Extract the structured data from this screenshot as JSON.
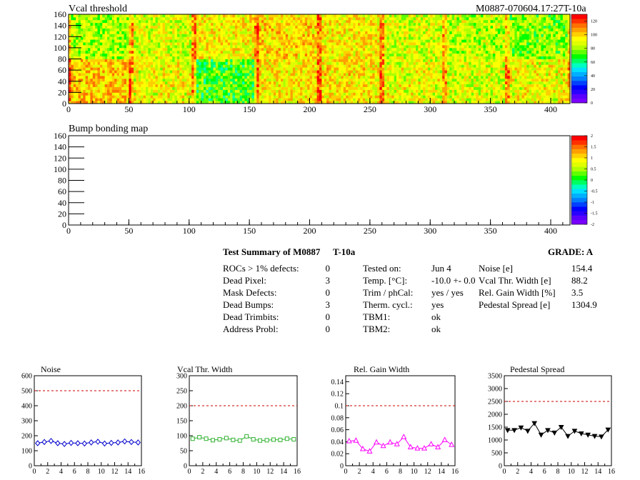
{
  "header": {
    "plot1_title": "Vcal threshold",
    "module_id": "M0887-070604.17:27T-10a",
    "plot2_title": "Bump bonding map"
  },
  "colors": {
    "palette": [
      "#7a00ff",
      "#5a00ff",
      "#2a00ff",
      "#0000ff",
      "#0040ff",
      "#0080ff",
      "#00b0ff",
      "#00e0ff",
      "#00ffc0",
      "#00ff60",
      "#00ff00",
      "#60ff00",
      "#b0ff00",
      "#e0ff00",
      "#ffff00",
      "#ffd000",
      "#ffa000",
      "#ff7000",
      "#ff3000",
      "#ff0000"
    ],
    "green": "#33b233",
    "magenta": "#ff00ff",
    "limit": "#cc0000",
    "noise": "#0000cc"
  },
  "map_axes": {
    "x_ticks": [
      "0",
      "50",
      "100",
      "150",
      "200",
      "250",
      "300",
      "350",
      "400"
    ],
    "y_ticks": [
      "0",
      "20",
      "40",
      "60",
      "80",
      "100",
      "120",
      "140",
      "160"
    ],
    "z1_ticks": [
      "0",
      "20",
      "40",
      "60",
      "80",
      "100",
      "120"
    ],
    "z2_ticks": [
      "-2",
      "-1.5",
      "-1",
      "-0.5",
      "0",
      "0.5",
      "1",
      "1.5",
      "2"
    ]
  },
  "summary": {
    "title": "Test Summary of M0887",
    "temp_label": "T-10a",
    "grade": "GRADE:  A",
    "col1": [
      {
        "label": "ROCs > 1% defects:",
        "value": "0"
      },
      {
        "label": "Dead Pixel:",
        "value": "3"
      },
      {
        "label": "Mask Defects:",
        "value": "0"
      },
      {
        "label": "Dead Bumps:",
        "value": "3"
      },
      {
        "label": "Dead Trimbits:",
        "value": "0"
      },
      {
        "label": "Address Probl:",
        "value": "0"
      }
    ],
    "col2": [
      {
        "label": "Tested on:",
        "value": "Jun 4"
      },
      {
        "label": "Temp. [°C]:",
        "value": "-10.0 +- 0.0"
      },
      {
        "label": "Trim / phCal:",
        "value": "yes / yes"
      },
      {
        "label": "Therm. cycl.:",
        "value": "yes"
      },
      {
        "label": "TBM1:",
        "value": "ok"
      },
      {
        "label": "TBM2:",
        "value": "ok"
      }
    ],
    "col3": [
      {
        "label": "Noise [e]",
        "value": "154.4"
      },
      {
        "label": "Vcal Thr. Width [e]",
        "value": "88.2"
      },
      {
        "label": "Rel. Gain Width [%]",
        "value": "3.5"
      },
      {
        "label": "Pedestal Spread [e]",
        "value": "1304.9"
      }
    ]
  },
  "chart_data": [
    {
      "type": "heatmap",
      "title": "Vcal threshold",
      "xlim": [
        0,
        416
      ],
      "ylim": [
        0,
        160
      ],
      "zlim": [
        0,
        130
      ],
      "x_ticks": [
        0,
        50,
        100,
        150,
        200,
        250,
        300,
        350,
        400
      ],
      "y_ticks": [
        0,
        20,
        40,
        60,
        80,
        100,
        120,
        140,
        160
      ],
      "z_ticks": [
        0,
        20,
        40,
        60,
        80,
        100,
        120
      ],
      "roc_mean_values": {
        "top_row": [
          82,
          88,
          93,
          98,
          94,
          88,
          84,
          78
        ],
        "bottom_row": [
          100,
          92,
          72,
          95,
          96,
          90,
          88,
          92
        ]
      }
    },
    {
      "type": "heatmap",
      "title": "Bump bonding map",
      "xlim": [
        0,
        416
      ],
      "ylim": [
        0,
        160
      ],
      "zlim": [
        -2,
        2
      ],
      "x_ticks": [
        0,
        50,
        100,
        150,
        200,
        250,
        300,
        350,
        400
      ],
      "y_ticks": [
        0,
        20,
        40,
        60,
        80,
        100,
        120,
        140,
        160
      ],
      "z_ticks": [
        -2,
        -1.5,
        -1,
        -0.5,
        0,
        0.5,
        1,
        1.5,
        2
      ]
    },
    {
      "type": "line",
      "title": "Noise",
      "xlim": [
        0,
        16
      ],
      "ylim": [
        0,
        600
      ],
      "x_ticks": [
        "0",
        "2",
        "4",
        "6",
        "8",
        "10",
        "12",
        "14",
        "16"
      ],
      "y_ticks": [
        "0",
        "100",
        "200",
        "300",
        "400",
        "500",
        "600"
      ],
      "limit": 500,
      "x": [
        0.5,
        1.5,
        2.5,
        3.5,
        4.5,
        5.5,
        6.5,
        7.5,
        8.5,
        9.5,
        10.5,
        11.5,
        12.5,
        13.5,
        14.5,
        15.5
      ],
      "values": [
        150,
        158,
        165,
        150,
        145,
        152,
        150,
        148,
        155,
        160,
        148,
        152,
        155,
        162,
        158,
        155
      ]
    },
    {
      "type": "line",
      "title": "Vcal Thr. Width",
      "xlim": [
        0,
        16
      ],
      "ylim": [
        0,
        300
      ],
      "x_ticks": [
        "0",
        "2",
        "4",
        "6",
        "8",
        "10",
        "12",
        "14",
        "16"
      ],
      "y_ticks": [
        "0",
        "50",
        "100",
        "150",
        "200",
        "250",
        "300"
      ],
      "limit": 200,
      "x": [
        0.5,
        1.5,
        2.5,
        3.5,
        4.5,
        5.5,
        6.5,
        7.5,
        8.5,
        9.5,
        10.5,
        11.5,
        12.5,
        13.5,
        14.5,
        15.5
      ],
      "values": [
        90,
        95,
        90,
        85,
        88,
        92,
        86,
        84,
        98,
        88,
        84,
        85,
        87,
        86,
        90,
        88
      ]
    },
    {
      "type": "line",
      "title": "Rel. Gain Width",
      "xlim": [
        0,
        16
      ],
      "ylim": [
        0,
        0.15
      ],
      "x_ticks": [
        "0",
        "2",
        "4",
        "6",
        "8",
        "10",
        "12",
        "14",
        "16"
      ],
      "y_ticks": [
        "0",
        "0.02",
        "0.04",
        "0.06",
        "0.08",
        "0.1",
        "0.12",
        "0.14"
      ],
      "limit": 0.1,
      "x": [
        0.5,
        1.5,
        2.5,
        3.5,
        4.5,
        5.5,
        6.5,
        7.5,
        8.5,
        9.5,
        10.5,
        11.5,
        12.5,
        13.5,
        14.5,
        15.5
      ],
      "values": [
        0.041,
        0.042,
        0.028,
        0.024,
        0.039,
        0.033,
        0.039,
        0.036,
        0.048,
        0.031,
        0.029,
        0.029,
        0.036,
        0.031,
        0.043,
        0.035
      ]
    },
    {
      "type": "line",
      "title": "Pedestal Spread",
      "xlim": [
        0,
        16
      ],
      "ylim": [
        0,
        3500
      ],
      "x_ticks": [
        "0",
        "2",
        "4",
        "6",
        "8",
        "10",
        "12",
        "14",
        "16"
      ],
      "y_ticks": [
        "0",
        "500",
        "1000",
        "1500",
        "2000",
        "2500",
        "3000",
        "3500"
      ],
      "limit": 2500,
      "x": [
        0.5,
        1.5,
        2.5,
        3.5,
        4.5,
        5.5,
        6.5,
        7.5,
        8.5,
        9.5,
        10.5,
        11.5,
        12.5,
        13.5,
        14.5,
        15.5
      ],
      "values": [
        1380,
        1380,
        1480,
        1350,
        1650,
        1200,
        1380,
        1280,
        1500,
        1150,
        1350,
        1250,
        1200,
        1150,
        1130,
        1400
      ]
    }
  ]
}
